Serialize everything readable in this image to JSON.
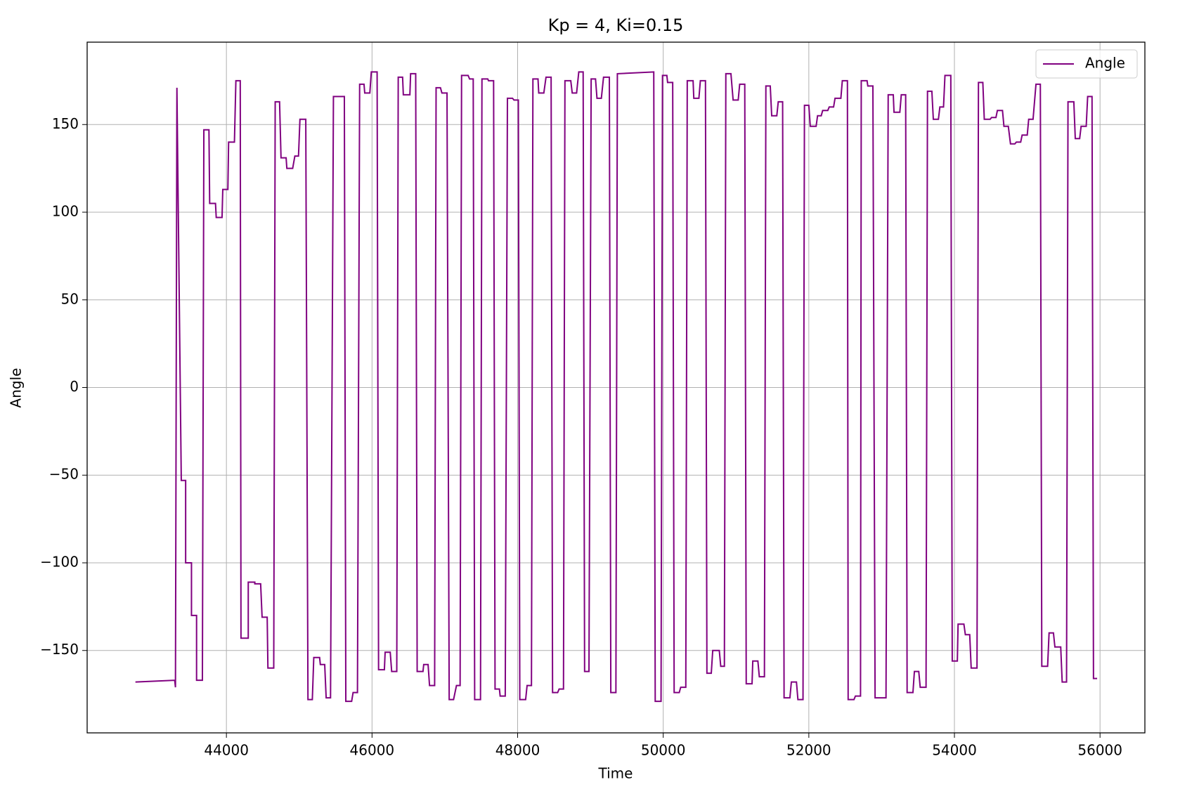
{
  "chart_data": {
    "type": "line",
    "title": "Kp = 4, Ki=0.15",
    "xlabel": "Time",
    "ylabel": "Angle",
    "x": [
      42750,
      43290,
      43300,
      43320,
      43380,
      43440,
      43440,
      43520,
      43520,
      43590,
      43590,
      43670,
      43690,
      43760,
      43770,
      43850,
      43860,
      43940,
      43950,
      44020,
      44030,
      44110,
      44130,
      44190,
      44200,
      44300,
      44300,
      44390,
      44390,
      44470,
      44490,
      44560,
      44570,
      44650,
      44670,
      44730,
      44750,
      44820,
      44830,
      44910,
      44940,
      44990,
      45010,
      45090,
      45120,
      45180,
      45200,
      45280,
      45290,
      45350,
      45370,
      45430,
      45470,
      45620,
      45640,
      45720,
      45740,
      45800,
      45830,
      45890,
      45900,
      45970,
      45990,
      46070,
      46090,
      46170,
      46180,
      46250,
      46270,
      46340,
      46360,
      46420,
      46430,
      46520,
      46530,
      46600,
      46620,
      46700,
      46710,
      46770,
      46790,
      46860,
      46880,
      46940,
      46960,
      47030,
      47060,
      47120,
      47160,
      47210,
      47230,
      47320,
      47340,
      47390,
      47410,
      47490,
      47510,
      47590,
      47600,
      47670,
      47690,
      47750,
      47760,
      47830,
      47860,
      47930,
      47950,
      48010,
      48030,
      48110,
      48130,
      48190,
      48210,
      48280,
      48290,
      48360,
      48390,
      48460,
      48480,
      48550,
      48570,
      48630,
      48650,
      48730,
      48750,
      48810,
      48840,
      48900,
      48920,
      48980,
      49010,
      49070,
      49090,
      49150,
      49180,
      49260,
      49280,
      49350,
      49370,
      49870,
      49890,
      49970,
      49990,
      50050,
      50060,
      50130,
      50150,
      50220,
      50240,
      50310,
      50330,
      50410,
      50420,
      50490,
      50510,
      50580,
      50600,
      50660,
      50680,
      50770,
      50790,
      50840,
      50860,
      50930,
      50960,
      51030,
      51050,
      51120,
      51140,
      51220,
      51230,
      51300,
      51320,
      51390,
      51410,
      51470,
      51490,
      51560,
      51580,
      51640,
      51660,
      51740,
      51760,
      51830,
      51850,
      51920,
      51940,
      52000,
      52020,
      52100,
      52120,
      52170,
      52190,
      52260,
      52280,
      52340,
      52360,
      52440,
      52460,
      52530,
      52540,
      52620,
      52640,
      52710,
      52720,
      52800,
      52810,
      52880,
      52910,
      53060,
      53090,
      53160,
      53170,
      53250,
      53270,
      53330,
      53350,
      53430,
      53450,
      53510,
      53530,
      53610,
      53630,
      53690,
      53710,
      53780,
      53800,
      53850,
      53870,
      53950,
      53970,
      54040,
      54050,
      54130,
      54150,
      54210,
      54230,
      54310,
      54330,
      54390,
      54410,
      54490,
      54510,
      54570,
      54590,
      54660,
      54680,
      54740,
      54770,
      54830,
      54850,
      54910,
      54930,
      55000,
      55020,
      55080,
      55120,
      55180,
      55200,
      55280,
      55300,
      55360,
      55380,
      55460,
      55480,
      55540,
      55560,
      55640,
      55660,
      55720,
      55740,
      55810,
      55830,
      55890,
      55910,
      55960
    ],
    "series": [
      {
        "name": "Angle",
        "color": "#800080",
        "values": [
          -168,
          -167,
          -171,
          171,
          -53,
          -53,
          -100,
          -100,
          -130,
          -130,
          -167,
          -167,
          147,
          147,
          105,
          105,
          97,
          97,
          113,
          113,
          140,
          140,
          175,
          175,
          -143,
          -143,
          -111,
          -111,
          -112,
          -112,
          -131,
          -131,
          -160,
          -160,
          163,
          163,
          131,
          131,
          125,
          125,
          132,
          132,
          153,
          153,
          -178,
          -178,
          -154,
          -154,
          -158,
          -158,
          -177,
          -177,
          166,
          166,
          -179,
          -179,
          -174,
          -174,
          173,
          173,
          168,
          168,
          180,
          180,
          -161,
          -161,
          -151,
          -151,
          -162,
          -162,
          177,
          177,
          167,
          167,
          179,
          179,
          -162,
          -162,
          -158,
          -158,
          -170,
          -170,
          171,
          171,
          168,
          168,
          -178,
          -178,
          -170,
          -170,
          178,
          178,
          176,
          176,
          -178,
          -178,
          176,
          176,
          175,
          175,
          -172,
          -172,
          -176,
          -176,
          165,
          165,
          164,
          164,
          -178,
          -178,
          -170,
          -170,
          176,
          176,
          168,
          168,
          177,
          177,
          -174,
          -174,
          -172,
          -172,
          175,
          175,
          168,
          168,
          180,
          180,
          -162,
          -162,
          176,
          176,
          165,
          165,
          177,
          177,
          -174,
          -174,
          179,
          180,
          -179,
          -179,
          178,
          178,
          174,
          174,
          -174,
          -174,
          -171,
          -171,
          175,
          175,
          165,
          165,
          175,
          175,
          -163,
          -163,
          -150,
          -150,
          -159,
          -159,
          179,
          179,
          164,
          164,
          173,
          173,
          -169,
          -169,
          -156,
          -156,
          -165,
          -165,
          172,
          172,
          155,
          155,
          163,
          163,
          -177,
          -177,
          -168,
          -168,
          -178,
          -178,
          161,
          161,
          149,
          149,
          155,
          155,
          158,
          158,
          160,
          160,
          165,
          165,
          175,
          175,
          -178,
          -178,
          -176,
          -176,
          175,
          175,
          172,
          172,
          -177,
          -177,
          167,
          167,
          157,
          157,
          167,
          167,
          -174,
          -174,
          -162,
          -162,
          -171,
          -171,
          169,
          169,
          153,
          153,
          160,
          160,
          178,
          178,
          -156,
          -156,
          -135,
          -135,
          -141,
          -141,
          -160,
          -160,
          174,
          174,
          153,
          153,
          154,
          154,
          158,
          158,
          149,
          149,
          139,
          139,
          140,
          140,
          144,
          144,
          153,
          153,
          173,
          173,
          -159,
          -159,
          -140,
          -140,
          -148,
          -148,
          -168,
          -168,
          163,
          163,
          142,
          142,
          149,
          149,
          166,
          166,
          -166,
          -166
        ]
      }
    ],
    "xlim": [
      42087,
      56616
    ],
    "ylim": [
      -197,
      197
    ],
    "xticks": [
      44000,
      46000,
      48000,
      50000,
      52000,
      54000,
      56000
    ],
    "yticks": [
      {
        "value": -150,
        "label": "−150"
      },
      {
        "value": -100,
        "label": "−100"
      },
      {
        "value": -50,
        "label": "−50"
      },
      0,
      50,
      100,
      150
    ],
    "grid": true,
    "legend": "upper right"
  }
}
